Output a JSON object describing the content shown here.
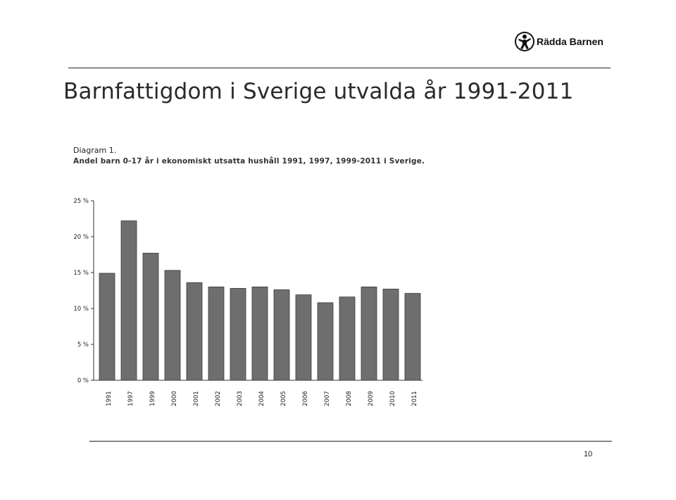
{
  "header": {
    "brand": "Rädda Barnen",
    "logo_icon": "child-figure-logo-icon"
  },
  "slide": {
    "title": "Barnfattigdom i Sverige utvalda år 1991-2011",
    "diagram_label": "Diagram 1.",
    "diagram_caption": "Andel barn 0-17 år i ekonomiskt utsatta hushåll 1991, 1997, 1999-2011 i Sverige."
  },
  "footer": {
    "page_number": "10"
  },
  "chart_data": {
    "type": "bar",
    "title": "Andel barn 0-17 år i ekonomiskt utsatta hushåll 1991, 1997, 1999-2011 i Sverige.",
    "xlabel": "",
    "ylabel": "",
    "categories": [
      "1991",
      "1997",
      "1999",
      "2000",
      "2001",
      "2002",
      "2003",
      "2004",
      "2005",
      "2006",
      "2007",
      "2008",
      "2009",
      "2010",
      "2011"
    ],
    "values": [
      14.9,
      22.2,
      17.7,
      15.3,
      13.6,
      13.0,
      12.8,
      13.0,
      12.6,
      11.9,
      10.8,
      11.6,
      13.0,
      12.7,
      12.1
    ],
    "yticks": [
      0,
      5,
      10,
      15,
      20,
      25
    ],
    "ytick_labels": [
      "0 %",
      "5 %",
      "10 %",
      "15 %",
      "20 %",
      "25 %"
    ],
    "ylim": [
      0,
      25
    ],
    "grid": false,
    "bar_color": "#6e6e6e"
  }
}
